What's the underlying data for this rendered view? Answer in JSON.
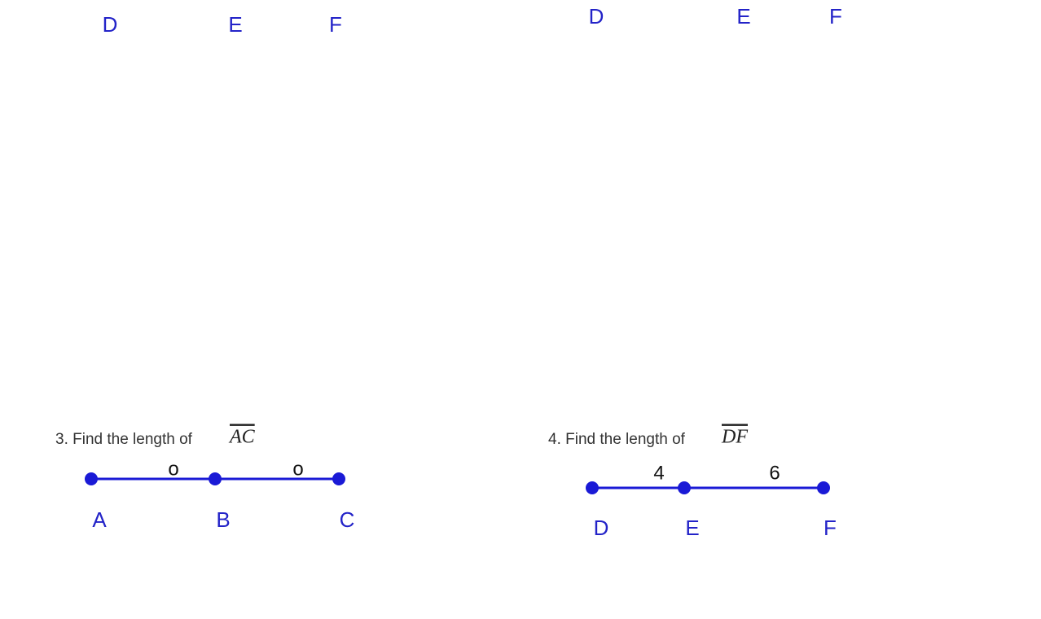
{
  "top_left_labels": [
    "D",
    "E",
    "F"
  ],
  "top_right_labels": [
    "D",
    "E",
    "F"
  ],
  "problems": [
    {
      "prompt": "3. Find the length of",
      "segment": "AC",
      "points": [
        "A",
        "B",
        "C"
      ],
      "segment_labels": [
        "o",
        "o"
      ]
    },
    {
      "prompt": "4. Find the length of",
      "segment": "DF",
      "points": [
        "D",
        "E",
        "F"
      ],
      "segment_labels": [
        "4",
        "6"
      ]
    }
  ]
}
